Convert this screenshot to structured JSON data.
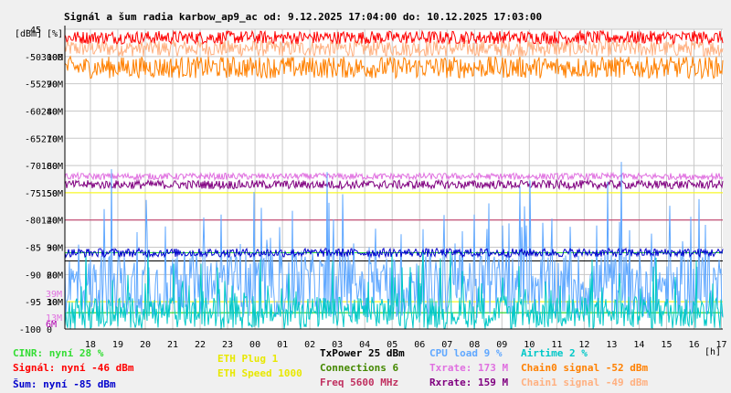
{
  "chart_data": {
    "type": "line",
    "title": "Signál a šum radia karbow_ap9_ac od: 9.12.2025 17:04:00 do: 10.12.2025 17:03:00",
    "left_axis_label": "[dBm]",
    "mid_axis_label": "[%]",
    "x_unit_label": "[h]",
    "x_range": [
      17.07,
      41.05
    ],
    "x_ticks": [
      {
        "x": 18,
        "label": "18"
      },
      {
        "x": 19,
        "label": "19"
      },
      {
        "x": 20,
        "label": "20"
      },
      {
        "x": 21,
        "label": "21"
      },
      {
        "x": 22,
        "label": "22"
      },
      {
        "x": 23,
        "label": "23"
      },
      {
        "x": 24,
        "label": "00"
      },
      {
        "x": 25,
        "label": "01"
      },
      {
        "x": 26,
        "label": "02"
      },
      {
        "x": 27,
        "label": "03"
      },
      {
        "x": 28,
        "label": "04"
      },
      {
        "x": 29,
        "label": "05"
      },
      {
        "x": 30,
        "label": "06"
      },
      {
        "x": 31,
        "label": "07"
      },
      {
        "x": 32,
        "label": "08"
      },
      {
        "x": 33,
        "label": "09"
      },
      {
        "x": 34,
        "label": "10"
      },
      {
        "x": 35,
        "label": "11"
      },
      {
        "x": 36,
        "label": "12"
      },
      {
        "x": 37,
        "label": "13"
      },
      {
        "x": 38,
        "label": "14"
      },
      {
        "x": 39,
        "label": "15"
      },
      {
        "x": 40,
        "label": "16"
      },
      {
        "x": 41,
        "label": "17"
      }
    ],
    "y_range_dbm": [
      -100,
      -45
    ],
    "y_ticks": [
      {
        "dbm": -45,
        "dbm_label": "-45",
        "pct": "",
        "rate": ""
      },
      {
        "dbm": -50,
        "dbm_label": "-50",
        "pct": "100",
        "rate": "300M"
      },
      {
        "dbm": -55,
        "dbm_label": "-55",
        "pct": "90",
        "rate": "270M"
      },
      {
        "dbm": -60,
        "dbm_label": "-60",
        "pct": "80",
        "rate": "240M"
      },
      {
        "dbm": -65,
        "dbm_label": "-65",
        "pct": "70",
        "rate": "210M"
      },
      {
        "dbm": -70,
        "dbm_label": "-70",
        "pct": "60",
        "rate": "180M"
      },
      {
        "dbm": -75,
        "dbm_label": "-75",
        "pct": "50",
        "rate": "150M"
      },
      {
        "dbm": -80,
        "dbm_label": "-80",
        "pct": "40",
        "rate": "120M"
      },
      {
        "dbm": -85,
        "dbm_label": "-85",
        "pct": "30",
        "rate": "90M"
      },
      {
        "dbm": -90,
        "dbm_label": "-90",
        "pct": "20",
        "rate": "60M"
      },
      {
        "dbm": -95,
        "dbm_label": "-95",
        "pct": "10",
        "rate": "30M"
      },
      {
        "dbm": -100,
        "dbm_label": "-100",
        "pct": "0",
        "rate": ""
      }
    ],
    "inner_labels": [
      {
        "text": "39M",
        "dbm": -93.5,
        "color": "#e070e0"
      },
      {
        "text": "13M",
        "dbm": -97.8,
        "color": "#e070e0"
      },
      {
        "text": "6M",
        "dbm": -99,
        "color": "#b000b0"
      }
    ],
    "grid": true,
    "series": [
      {
        "name": "Chain1 signal",
        "color": "#ffb080",
        "mean": -48.5,
        "jitter": 1.5
      },
      {
        "name": "Signál",
        "color": "#ff0000",
        "mean": -46.5,
        "jitter": 1.2
      },
      {
        "name": "Chain0 signal",
        "color": "#ff8000",
        "mean": -52,
        "jitter": 2
      },
      {
        "name": "Txrate",
        "color": "#e070e0",
        "mean": -72,
        "jitter": 0.6
      },
      {
        "name": "Rxrate",
        "color": "#800080",
        "mean": -73.5,
        "jitter": 0.8
      },
      {
        "name": "CPU load",
        "color": "#60a8ff",
        "mean": -92,
        "jitter": 6
      },
      {
        "name": "Airtime",
        "color": "#00c8c8",
        "mean": -97,
        "jitter": 3
      },
      {
        "name": "Šum",
        "color": "#0000cc",
        "mean": -86,
        "jitter": 0.8
      }
    ],
    "constant_lines": [
      {
        "name": "ETH Plug",
        "color": "#ffff00",
        "dbm": -95
      },
      {
        "name": "ETH Speed",
        "color": "#ffff00",
        "dbm": -75
      },
      {
        "name": "TxPower",
        "color": "#000000",
        "dbm": -87.5
      },
      {
        "name": "Connections",
        "color": "#00cc00",
        "dbm": -97
      },
      {
        "name": "Freq",
        "color": "#c03060",
        "dbm": -80
      },
      {
        "name": "CINR",
        "color": "#33dd33",
        "dbm": -86
      }
    ]
  },
  "legend": [
    {
      "id": "cinr",
      "text": "CINR: nyní 28 %",
      "color": "#33dd33"
    },
    {
      "id": "signal",
      "text": "Signál: nyní -46 dBm",
      "color": "#ff0000"
    },
    {
      "id": "noise",
      "text": "Šum: nyní -85 dBm",
      "color": "#0000cc"
    },
    {
      "id": "eth-plug",
      "text": "ETH Plug 1",
      "color": "#e8e800"
    },
    {
      "id": "eth-speed",
      "text": "ETH Speed 1000",
      "color": "#e8e800"
    },
    {
      "id": "txpower",
      "text": "TxPower 25 dBm",
      "color": "#000000"
    },
    {
      "id": "connections",
      "text": "Connections 6",
      "color": "#448800"
    },
    {
      "id": "freq",
      "text": "Freq 5600 MHz",
      "color": "#c03060"
    },
    {
      "id": "cpu",
      "text": "CPU load 9 %",
      "color": "#60a8ff"
    },
    {
      "id": "txrate",
      "text": "Txrate: 173 M",
      "color": "#e070e0"
    },
    {
      "id": "rxrate",
      "text": "Rxrate: 159 M",
      "color": "#800080"
    },
    {
      "id": "airtime",
      "text": "Airtime 2 %",
      "color": "#00c8c8"
    },
    {
      "id": "chain0",
      "text": "Chain0 signal -52 dBm",
      "color": "#ff8000"
    },
    {
      "id": "chain1",
      "text": "Chain1 signal -49 dBm",
      "color": "#ffb080"
    }
  ]
}
